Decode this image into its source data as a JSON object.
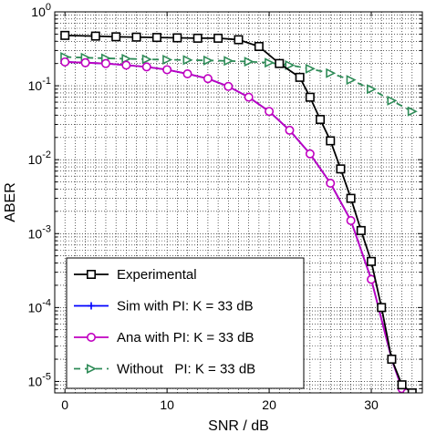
{
  "chart_data": {
    "type": "line",
    "xlabel": "SNR / dB",
    "ylabel": "ABER",
    "xscale": "linear",
    "yscale": "log",
    "xlim": [
      -1,
      35
    ],
    "ylim": [
      7e-06,
      1
    ],
    "grid": "on (major and minor, dotted)",
    "legend_position": "bottom-left",
    "x_ticks": [
      {
        "value": 0,
        "label": "0"
      },
      {
        "value": 10,
        "label": "10"
      },
      {
        "value": 20,
        "label": "20"
      },
      {
        "value": 30,
        "label": "30"
      }
    ],
    "y_ticks": [
      {
        "value": 1,
        "base": "10",
        "exp": "0"
      },
      {
        "value": 0.1,
        "base": "10",
        "exp": "-1"
      },
      {
        "value": 0.01,
        "base": "10",
        "exp": "-2"
      },
      {
        "value": 0.001,
        "base": "10",
        "exp": "-3"
      },
      {
        "value": 0.0001,
        "base": "10",
        "exp": "-4"
      },
      {
        "value": 1e-05,
        "base": "10",
        "exp": "-5"
      }
    ],
    "series": [
      {
        "name": "Experimental",
        "color": "#000000",
        "marker": "square",
        "dash": "solid",
        "x": [
          0,
          3,
          5,
          7,
          9,
          11,
          13,
          15,
          17,
          19,
          21,
          23,
          24,
          25,
          26,
          27,
          28,
          29,
          30,
          31,
          32,
          33,
          34
        ],
        "y": [
          0.48,
          0.47,
          0.46,
          0.455,
          0.45,
          0.445,
          0.44,
          0.44,
          0.42,
          0.34,
          0.2,
          0.13,
          0.07,
          0.035,
          0.018,
          0.0075,
          0.003,
          0.0011,
          0.00042,
          0.0001,
          2e-05,
          9e-06,
          7e-06
        ]
      },
      {
        "name": "Sim with PI: K = 33 dB",
        "color": "#0000ff",
        "marker": "plus",
        "dash": "solid",
        "x": [
          0,
          2,
          4,
          6,
          8,
          10,
          12,
          14,
          16,
          18,
          20,
          22,
          24,
          26,
          28,
          30,
          32,
          33,
          33.5
        ],
        "y": [
          0.21,
          0.205,
          0.2,
          0.19,
          0.18,
          0.165,
          0.145,
          0.125,
          0.098,
          0.07,
          0.045,
          0.025,
          0.012,
          0.0048,
          0.0015,
          0.00024,
          2e-05,
          8e-06,
          7e-06
        ]
      },
      {
        "name": "Ana with PI: K = 33 dB",
        "color": "#c000c0",
        "marker": "circle",
        "dash": "solid",
        "x": [
          0,
          2,
          4,
          6,
          8,
          10,
          12,
          14,
          16,
          18,
          20,
          22,
          24,
          26,
          28,
          30,
          32,
          33,
          33.5
        ],
        "y": [
          0.21,
          0.205,
          0.2,
          0.19,
          0.18,
          0.165,
          0.145,
          0.125,
          0.098,
          0.07,
          0.045,
          0.025,
          0.012,
          0.0048,
          0.0015,
          0.00024,
          2e-05,
          8e-06,
          7e-06
        ]
      },
      {
        "name": "Without   PI: K = 33 dB",
        "color": "#2e8b57",
        "marker": "triangle-right",
        "dash": "dashed",
        "x": [
          0,
          2,
          4,
          6,
          8,
          10,
          12,
          14,
          16,
          18,
          20,
          22,
          24,
          26,
          28,
          30,
          32,
          34
        ],
        "y": [
          0.245,
          0.24,
          0.235,
          0.232,
          0.228,
          0.225,
          0.223,
          0.22,
          0.217,
          0.212,
          0.205,
          0.19,
          0.17,
          0.148,
          0.12,
          0.09,
          0.063,
          0.045
        ]
      }
    ]
  }
}
